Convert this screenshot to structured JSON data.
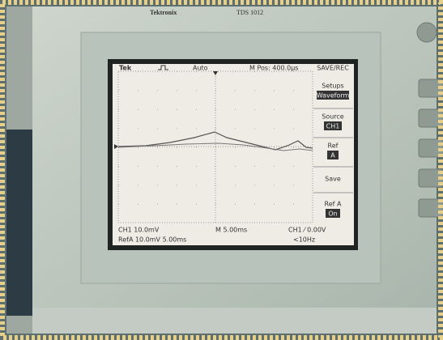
{
  "header": {
    "brand": "Tektronix",
    "model": "TDS 1012"
  },
  "screen": {
    "status": {
      "logo": "Tek",
      "trigger_state": "Auto",
      "position": "M Pos: 400.0μs"
    },
    "menu": {
      "title": "SAVE/REC",
      "items": [
        {
          "label": "Setups",
          "value": "Waveform"
        },
        {
          "label": "Source",
          "value": "CH1"
        },
        {
          "label": "Ref",
          "value": "A"
        },
        {
          "label": "Save"
        },
        {
          "label": "Ref A",
          "value": "On"
        }
      ]
    },
    "footer": {
      "channel": "CH1 10.0mV",
      "timebase": "M 5.00ms",
      "trigger": "CH1 ⁄ 0.00V",
      "reference": "RefA 10.0mV 5.00ms",
      "frequency": "<10Hz"
    }
  }
}
